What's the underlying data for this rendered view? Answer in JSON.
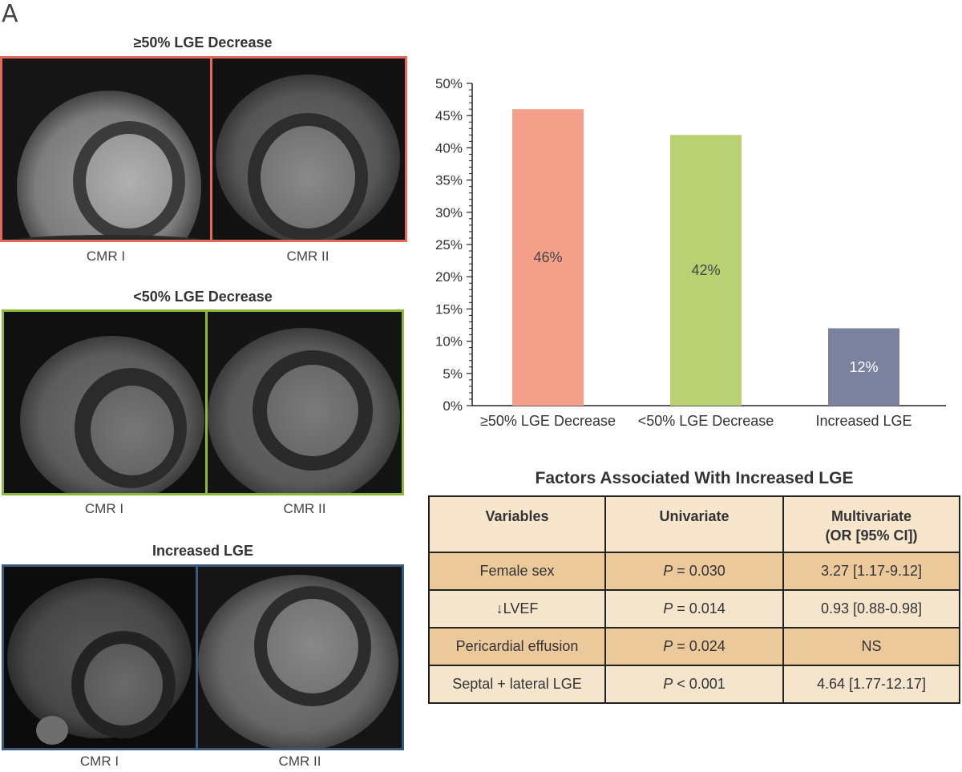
{
  "panel_letter": "A",
  "image_groups": [
    {
      "title": "≥50% LGE Decrease",
      "captions": [
        "CMR I",
        "CMR II"
      ],
      "border_color": "#e8675c"
    },
    {
      "title": "<50% LGE Decrease",
      "captions": [
        "CMR I",
        "CMR II"
      ],
      "border_color": "#8db83a"
    },
    {
      "title": "Increased LGE",
      "captions": [
        "CMR I",
        "CMR II"
      ],
      "border_color": "#3a5a7c"
    }
  ],
  "chart_data": {
    "type": "bar",
    "categories": [
      "≥50% LGE Decrease",
      "<50% LGE Decrease",
      "Increased LGE"
    ],
    "values": [
      46,
      42,
      12
    ],
    "value_labels": [
      "46%",
      "42%",
      "12%"
    ],
    "colors": [
      "#f4a08b",
      "#b9d173",
      "#7a829e"
    ],
    "ylim": [
      0,
      50
    ],
    "yticks": [
      "0%",
      "5%",
      "10%",
      "15%",
      "20%",
      "25%",
      "30%",
      "35%",
      "40%",
      "45%",
      "50%"
    ],
    "grid": false
  },
  "table": {
    "title": "Factors Associated With Increased LGE",
    "headers": [
      "Variables",
      "Univariate",
      "Multivariate",
      "(OR [95% CI])"
    ],
    "rows": [
      {
        "variable": "Female sex",
        "p_label": "P",
        "p_rest": " = 0.030",
        "multivariate": "3.27 [1.17-9.12]"
      },
      {
        "variable": "↓LVEF",
        "p_label": "P",
        "p_rest": " = 0.014",
        "multivariate": "0.93 [0.88-0.98]"
      },
      {
        "variable": "Pericardial effusion",
        "p_label": "P",
        "p_rest": " = 0.024",
        "multivariate": "NS"
      },
      {
        "variable": "Septal + lateral LGE",
        "p_label": "P",
        "p_rest": " < 0.001",
        "multivariate": "4.64 [1.77-12.17]"
      }
    ]
  }
}
